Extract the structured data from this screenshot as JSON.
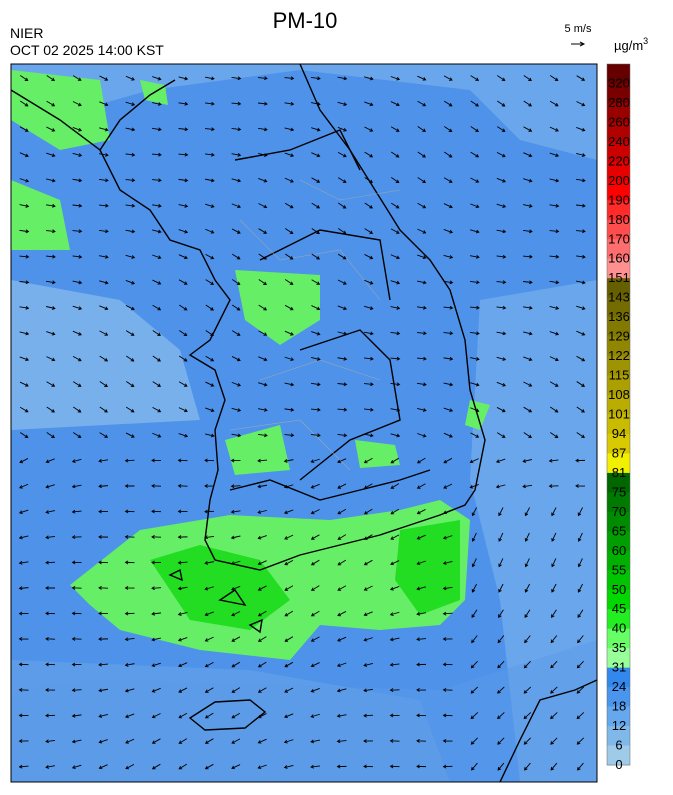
{
  "header": {
    "title": "PM-10",
    "agency": "NIER",
    "timestamp": "OCT 02 2025 14:00 KST",
    "wind_scale": "5 m/s",
    "unit": "µg/m",
    "unit_exp": "3"
  },
  "colorbar": {
    "ticks": [
      320,
      280,
      260,
      240,
      220,
      200,
      190,
      180,
      170,
      160,
      151,
      143,
      136,
      129,
      122,
      115,
      108,
      101,
      94,
      87,
      81,
      75,
      70,
      65,
      60,
      55,
      50,
      45,
      40,
      35,
      31,
      24,
      18,
      12,
      6,
      0
    ],
    "colors": [
      "#660000",
      "#7a0000",
      "#990000",
      "#b00000",
      "#cc0000",
      "#e60000",
      "#ff0000",
      "#ff2a2a",
      "#ff4d4d",
      "#ff6e6e",
      "#ff9090",
      "#665f00",
      "#746c00",
      "#827900",
      "#908600",
      "#9e9300",
      "#aca000",
      "#bbad00",
      "#c9bb00",
      "#d8c900",
      "#f0f000",
      "#006600",
      "#007a00",
      "#008c00",
      "#009e00",
      "#00b000",
      "#00c400",
      "#00d800",
      "#22ee22",
      "#66ff66",
      "#99ff99",
      "#3388ee",
      "#4a96ee",
      "#66a8ee",
      "#80b8ea",
      "#9fcbe8"
    ]
  }
}
